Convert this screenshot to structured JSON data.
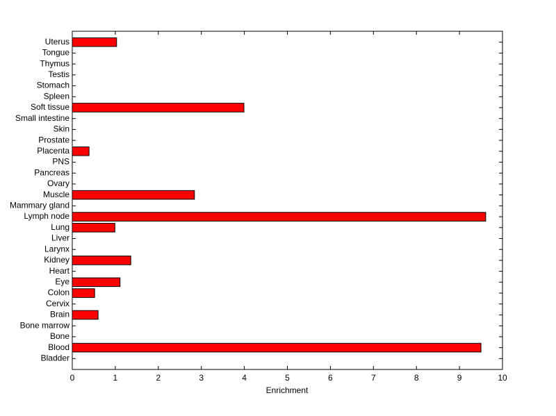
{
  "chart_data": {
    "type": "barh",
    "x_label": "Enrichment",
    "categories": [
      "Bladder",
      "Blood",
      "Bone",
      "Bone marrow",
      "Brain",
      "Cervix",
      "Colon",
      "Eye",
      "Heart",
      "Kidney",
      "Larynx",
      "Liver",
      "Lung",
      "Lymph node",
      "Mammary gland",
      "Muscle",
      "Ovary",
      "Pancreas",
      "PNS",
      "Placenta",
      "Prostate",
      "Skin",
      "Small intestine",
      "Soft tissue",
      "Spleen",
      "Stomach",
      "Testis",
      "Thymus",
      "Tongue",
      "Uterus"
    ],
    "values": [
      0,
      9.5,
      0,
      0,
      0.6,
      0,
      0.52,
      1.11,
      0,
      1.36,
      0,
      0,
      0.99,
      9.61,
      0,
      2.84,
      0,
      0,
      0,
      0.39,
      0,
      0,
      0,
      3.99,
      0,
      0,
      0,
      0,
      0,
      1.03
    ],
    "color": "#ff0000",
    "xlim": [
      0,
      10
    ],
    "xticks": [
      0,
      1,
      2,
      3,
      4,
      5,
      6,
      7,
      8,
      9,
      10
    ],
    "grid": false
  }
}
